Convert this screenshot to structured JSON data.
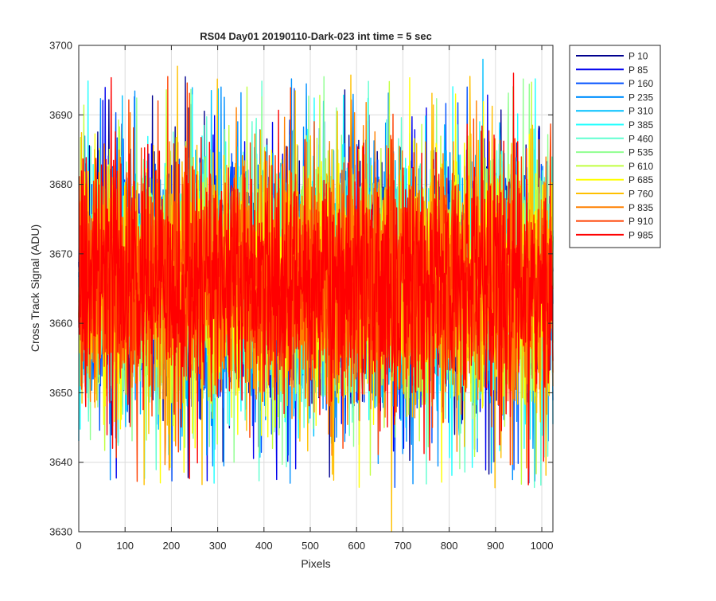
{
  "chart_data": {
    "type": "line",
    "title": "RS04 Day01 20190110-Dark-023 int time = 5 sec",
    "xlabel": "Pixels",
    "ylabel": "Cross Track Signal (ADU)",
    "xlim": [
      0,
      1024
    ],
    "ylim": [
      3630,
      3700
    ],
    "xticks": [
      0,
      100,
      200,
      300,
      400,
      500,
      600,
      700,
      800,
      900,
      1000
    ],
    "yticks": [
      3630,
      3640,
      3650,
      3660,
      3670,
      3680,
      3690,
      3700
    ],
    "grid": true,
    "legend_position": "outside-top-right",
    "x_count": 1024,
    "noise_summary": {
      "mean": 3666,
      "typical_range": [
        3650,
        3685
      ]
    },
    "series": [
      {
        "name": "P 10",
        "color": "#00008F",
        "y_min": 3644,
        "y_max": 3691
      },
      {
        "name": "P 85",
        "color": "#0000EE",
        "y_min": 3642,
        "y_max": 3691
      },
      {
        "name": "P 160",
        "color": "#0050FF",
        "y_min": 3643,
        "y_max": 3694
      },
      {
        "name": "P 235",
        "color": "#0090FF",
        "y_min": 3642,
        "y_max": 3694
      },
      {
        "name": "P 310",
        "color": "#00C0FF",
        "y_min": 3645,
        "y_max": 3698
      },
      {
        "name": "P 385",
        "color": "#20FFFF",
        "y_min": 3642,
        "y_max": 3689
      },
      {
        "name": "P 460",
        "color": "#60FFD0",
        "y_min": 3645,
        "y_max": 3689
      },
      {
        "name": "P 535",
        "color": "#90FF90",
        "y_min": 3640,
        "y_max": 3691
      },
      {
        "name": "P 610",
        "color": "#C0FF40",
        "y_min": 3645,
        "y_max": 3694
      },
      {
        "name": "P 685",
        "color": "#FFFF00",
        "y_min": 3644,
        "y_max": 3693
      },
      {
        "name": "P 760",
        "color": "#FFC000",
        "y_min": 3630,
        "y_max": 3697
      },
      {
        "name": "P 835",
        "color": "#FF8000",
        "y_min": 3641,
        "y_max": 3692
      },
      {
        "name": "P 910",
        "color": "#FF4000",
        "y_min": 3645,
        "y_max": 3692
      },
      {
        "name": "P 985",
        "color": "#FF0000",
        "y_min": 3642,
        "y_max": 3696
      }
    ]
  }
}
